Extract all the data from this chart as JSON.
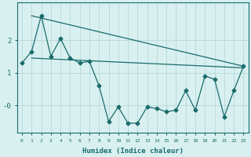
{
  "xlabel": "Humidex (Indice chaleur)",
  "x": [
    0,
    1,
    2,
    3,
    4,
    5,
    6,
    7,
    8,
    9,
    10,
    11,
    12,
    13,
    14,
    15,
    16,
    17,
    18,
    19,
    20,
    21,
    22,
    23
  ],
  "y_line": [
    1.3,
    1.65,
    2.75,
    1.5,
    2.05,
    1.45,
    1.3,
    1.35,
    0.6,
    -0.5,
    -0.05,
    -0.55,
    -0.55,
    -0.05,
    -0.1,
    -0.2,
    -0.15,
    0.45,
    -0.15,
    0.9,
    0.8,
    -0.35,
    0.45,
    1.2
  ],
  "y_trend1_x": [
    1,
    23
  ],
  "y_trend1_y": [
    2.75,
    1.2
  ],
  "y_trend2_x": [
    1,
    23
  ],
  "y_trend2_y": [
    1.45,
    1.15
  ],
  "line_color": "#1a6b6b",
  "bg_color": "#d9f0f0",
  "grid_color": "#b0d4d4",
  "ylim": [
    -0.85,
    3.15
  ],
  "xlim": [
    -0.5,
    23.5
  ]
}
